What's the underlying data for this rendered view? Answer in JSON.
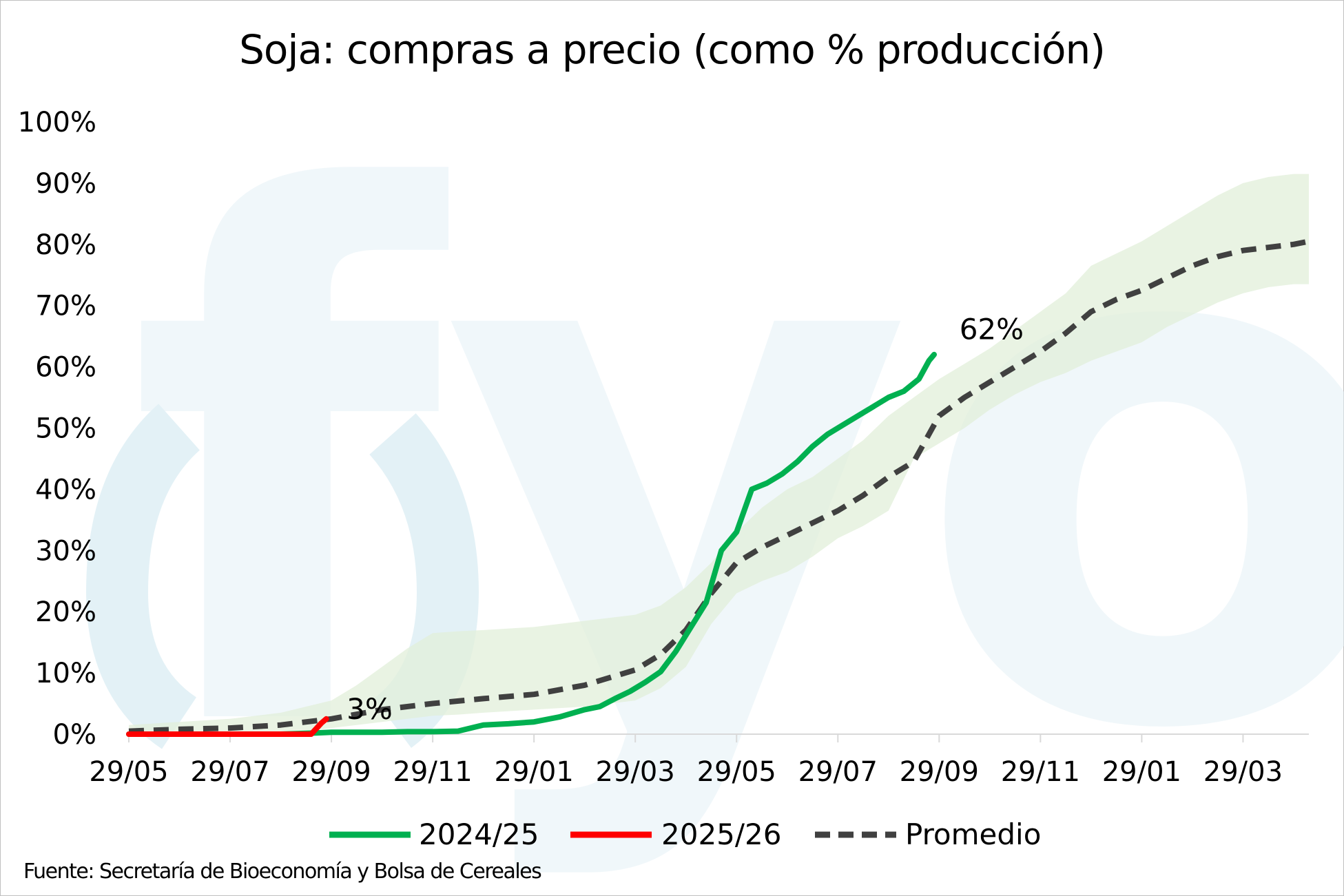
{
  "chart_data": {
    "type": "line",
    "title": "Soja: compras a precio (como % producción)",
    "source": "Fuente: Secretaría de Bioeconomía y Bolsa de Cereales",
    "yticks": [
      "0%",
      "10%",
      "20%",
      "30%",
      "40%",
      "50%",
      "60%",
      "70%",
      "80%",
      "90%",
      "100%"
    ],
    "ylim": [
      0,
      100
    ],
    "xticks": [
      "29/05",
      "29/07",
      "29/09",
      "29/11",
      "29/01",
      "29/03",
      "29/05",
      "29/07",
      "29/09",
      "29/11",
      "29/01",
      "29/03"
    ],
    "xtick_positions": [
      0,
      2,
      4,
      6,
      8,
      10,
      12,
      14,
      16,
      18,
      20,
      22
    ],
    "xlim": [
      0,
      23.3
    ],
    "legend_position": "bottom",
    "grid": false,
    "watermark": "fyo",
    "series": [
      {
        "name": "2024/25",
        "color": "#00b050",
        "style": "solid",
        "x": [
          0,
          1,
          2,
          3,
          3.7,
          4,
          4.5,
          5,
          5.5,
          6,
          6.5,
          7,
          7.5,
          8,
          8.5,
          9,
          9.3,
          9.6,
          9.9,
          10.2,
          10.5,
          10.8,
          11.1,
          11.4,
          11.7,
          12,
          12.3,
          12.6,
          12.9,
          13.2,
          13.5,
          13.8,
          14.1,
          14.4,
          14.7,
          15,
          15.3,
          15.6,
          15.8,
          15.9
        ],
        "values": [
          0,
          0,
          0,
          0,
          0.2,
          0.3,
          0.3,
          0.3,
          0.4,
          0.4,
          0.5,
          1.5,
          1.7,
          2.0,
          2.8,
          4.0,
          4.5,
          5.8,
          7.0,
          8.5,
          10.2,
          13.5,
          17.5,
          21.5,
          30.0,
          33.0,
          40.0,
          41.0,
          42.5,
          44.5,
          47.0,
          49.0,
          50.5,
          52.0,
          53.5,
          55.0,
          56.0,
          58.0,
          61.0,
          62.0
        ]
      },
      {
        "name": "2025/26",
        "color": "#ff0000",
        "style": "solid",
        "x": [
          0,
          1,
          2,
          3,
          3.6,
          3.8,
          3.9
        ],
        "values": [
          0,
          0,
          0,
          0,
          0,
          1.8,
          2.5
        ]
      },
      {
        "name": "Promedio",
        "color": "#404040",
        "style": "dashed",
        "x": [
          0,
          1,
          2,
          3,
          4,
          5,
          6,
          7,
          8,
          9,
          10,
          10.5,
          11,
          11.5,
          12,
          12.5,
          13,
          13.5,
          14,
          14.5,
          15,
          15.5,
          16,
          16.5,
          17,
          17.5,
          18,
          18.5,
          19,
          19.5,
          20,
          20.5,
          21,
          21.5,
          22,
          22.5,
          23,
          23.3
        ],
        "values": [
          0.5,
          0.8,
          1.0,
          1.5,
          2.5,
          4.0,
          5.0,
          5.8,
          6.5,
          8.0,
          10.5,
          13.0,
          17.0,
          23.0,
          28.0,
          30.5,
          32.5,
          34.5,
          36.5,
          39.0,
          42.0,
          44.5,
          52.0,
          55.0,
          57.5,
          60.0,
          62.5,
          65.5,
          69.0,
          71.0,
          72.5,
          74.5,
          76.5,
          78.0,
          79.0,
          79.5,
          80.0,
          80.5
        ]
      }
    ],
    "band": {
      "color": "#e2efd9",
      "x": [
        0,
        1,
        2,
        3,
        3.5,
        4,
        4.5,
        5,
        5.5,
        6,
        6.5,
        7,
        8,
        9,
        10,
        10.5,
        11,
        11.5,
        12,
        12.5,
        13,
        13.5,
        14,
        14.5,
        15,
        15.5,
        16,
        16.5,
        17,
        17.5,
        18,
        18.5,
        19,
        19.5,
        20,
        20.5,
        21,
        21.5,
        22,
        22.5,
        23,
        23.3
      ],
      "upper": [
        1.5,
        2.0,
        2.5,
        3.5,
        4.5,
        5.5,
        8.0,
        11.0,
        14.0,
        16.5,
        16.8,
        17.0,
        17.5,
        18.5,
        19.5,
        21.0,
        24.0,
        28.0,
        33.0,
        37.0,
        40.0,
        42.0,
        45.0,
        48.0,
        52.0,
        55.0,
        58.0,
        60.5,
        63.0,
        66.0,
        69.0,
        72.0,
        76.5,
        78.5,
        80.5,
        83.0,
        85.5,
        88.0,
        90.0,
        91.0,
        91.5,
        91.5
      ],
      "lower": [
        0,
        0,
        0,
        0.2,
        0.5,
        1.0,
        1.5,
        2.0,
        2.5,
        3.0,
        3.2,
        3.5,
        4.0,
        4.5,
        5.5,
        7.5,
        11.0,
        18.0,
        23.0,
        25.0,
        26.5,
        29.0,
        32.0,
        34.0,
        36.5,
        45.0,
        47.5,
        50.0,
        53.0,
        55.5,
        57.5,
        59.0,
        61.0,
        62.5,
        64.0,
        66.5,
        68.5,
        70.5,
        72.0,
        73.0,
        73.5,
        73.5
      ]
    },
    "annotations": [
      {
        "text": "3%",
        "x": 4.3,
        "y": 2.5
      },
      {
        "text": "62%",
        "x": 16.4,
        "y": 64.5
      }
    ]
  }
}
